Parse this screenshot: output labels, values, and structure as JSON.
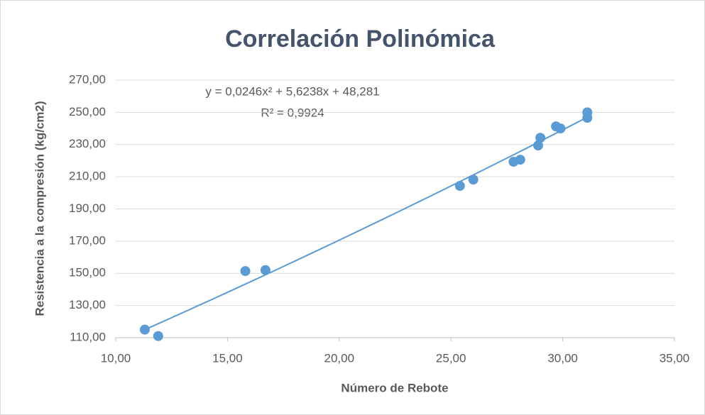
{
  "chart_data": {
    "type": "scatter",
    "title": "Correlación Polinómica",
    "xlabel": "Número de Rebote",
    "ylabel": "Resistencia a la compresión (kg/cm2)",
    "x": [
      11.3,
      11.9,
      15.8,
      16.7,
      25.4,
      26.0,
      27.8,
      28.1,
      28.9,
      29.0,
      29.7,
      29.9,
      31.1,
      31.1
    ],
    "values": [
      115,
      111,
      151.4,
      152,
      204.3,
      208.2,
      219.3,
      220.6,
      229.4,
      234.2,
      241.3,
      240,
      246.6,
      250
    ],
    "color": "#5b9bd5",
    "xlim": [
      10,
      35
    ],
    "xticks": [
      {
        "value": 10,
        "label": "10,00"
      },
      {
        "value": 15,
        "label": "15,00"
      },
      {
        "value": 20,
        "label": "20,00"
      },
      {
        "value": 25,
        "label": "25,00"
      },
      {
        "value": 30,
        "label": "30,00"
      },
      {
        "value": 35,
        "label": "35,00"
      }
    ],
    "ylim": [
      110,
      270
    ],
    "yticks": [
      {
        "value": 110,
        "label": "110,00"
      },
      {
        "value": 130,
        "label": "130,00"
      },
      {
        "value": 150,
        "label": "150,00"
      },
      {
        "value": 170,
        "label": "170,00"
      },
      {
        "value": 190,
        "label": "190,00"
      },
      {
        "value": 210,
        "label": "210,00"
      },
      {
        "value": 230,
        "label": "230,00"
      },
      {
        "value": 250,
        "label": "250,00"
      },
      {
        "value": 270,
        "label": "270,00"
      }
    ],
    "grid": true,
    "trendline": {
      "type": "polynomial",
      "coefficients": [
        48.281,
        5.6238,
        0.0246
      ],
      "equation": "y = 0,0246x² + 5,6238x + 48,281",
      "r2": "R² = 0,9924"
    }
  }
}
